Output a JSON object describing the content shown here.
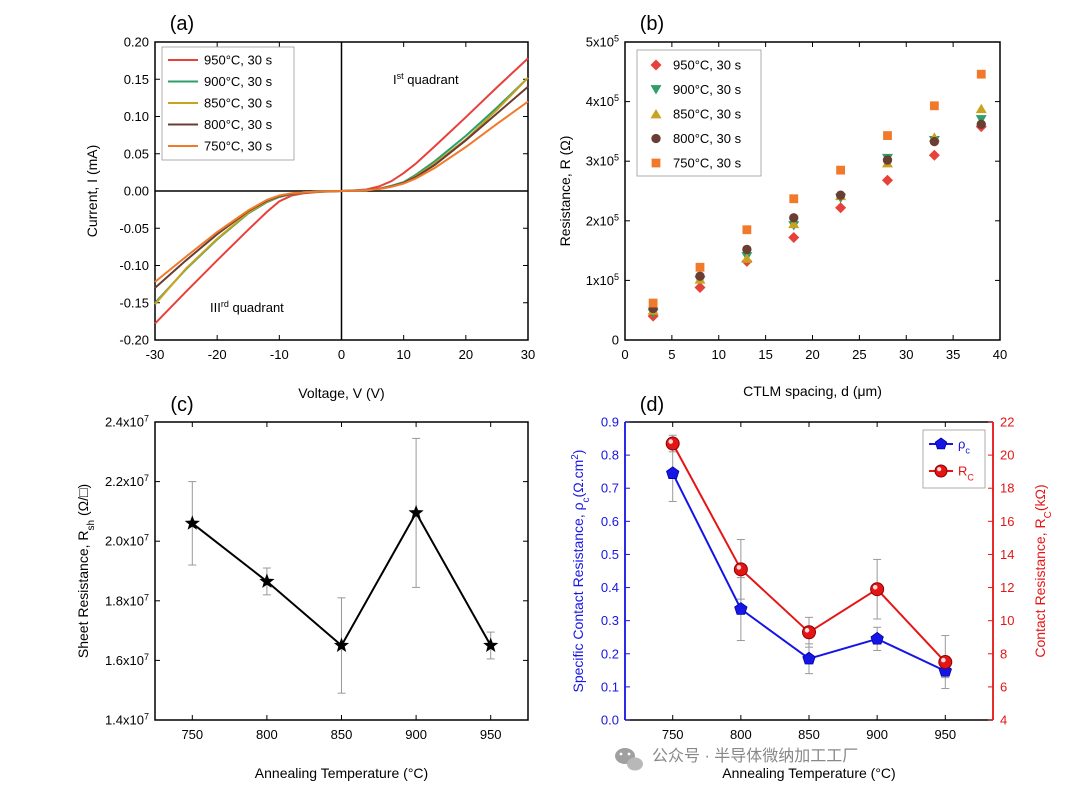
{
  "chart_data": [
    {
      "panel": "(a)",
      "type": "line",
      "xlabel": "Voltage, V (V)",
      "ylabel": "Current, I (mA)",
      "xlim": [
        -30,
        30
      ],
      "ylim": [
        -0.2,
        0.2
      ],
      "xticks": [
        -30,
        -20,
        -10,
        0,
        10,
        20,
        30
      ],
      "yticks": [
        -0.2,
        -0.15,
        -0.1,
        -0.05,
        0.0,
        0.05,
        0.1,
        0.15,
        0.2
      ],
      "ytick_labels": [
        "-0.20",
        "-0.15",
        "-0.10",
        "-0.05",
        "0.00",
        "0.05",
        "0.10",
        "0.15",
        "0.20"
      ],
      "legend_position": "top-left",
      "annotations": [
        {
          "base": "I",
          "sup": "st",
          "rest": " quadrant"
        },
        {
          "base": "III",
          "sup": "rd",
          "rest": " quadrant"
        }
      ],
      "x": [
        -30,
        -25,
        -20,
        -15,
        -12,
        -10,
        -8,
        -6,
        -4,
        -2,
        0,
        2,
        4,
        6,
        8,
        10,
        12,
        15,
        20,
        25,
        30
      ],
      "series": [
        {
          "name": "950°C, 30 s",
          "color": "#e8403a",
          "values": [
            -0.178,
            -0.135,
            -0.093,
            -0.052,
            -0.028,
            -0.014,
            -0.006,
            -0.003,
            -0.0015,
            -0.0007,
            0,
            0.0008,
            0.002,
            0.006,
            0.013,
            0.024,
            0.037,
            0.06,
            0.099,
            0.139,
            0.178
          ]
        },
        {
          "name": "900°C, 30 s",
          "color": "#2e9e6a",
          "values": [
            -0.15,
            -0.105,
            -0.065,
            -0.03,
            -0.015,
            -0.008,
            -0.004,
            -0.002,
            -0.001,
            -0.0005,
            0,
            0.0005,
            0.001,
            0.003,
            0.007,
            0.012,
            0.022,
            0.04,
            0.074,
            0.112,
            0.152
          ]
        },
        {
          "name": "850°C, 30 s",
          "color": "#c9a21e",
          "values": [
            -0.152,
            -0.104,
            -0.064,
            -0.029,
            -0.014,
            -0.007,
            -0.0035,
            -0.0018,
            -0.001,
            -0.0005,
            0,
            0.0005,
            0.001,
            0.003,
            0.006,
            0.011,
            0.02,
            0.037,
            0.069,
            0.109,
            0.152
          ]
        },
        {
          "name": "800°C, 30 s",
          "color": "#6b3e34",
          "values": [
            -0.13,
            -0.093,
            -0.058,
            -0.027,
            -0.013,
            -0.007,
            -0.0035,
            -0.0018,
            -0.001,
            -0.0005,
            0,
            0.0005,
            0.001,
            0.0028,
            0.006,
            0.011,
            0.019,
            0.035,
            0.068,
            0.104,
            0.14
          ]
        },
        {
          "name": "750°C, 30 s",
          "color": "#f07a2a",
          "values": [
            -0.122,
            -0.088,
            -0.055,
            -0.026,
            -0.012,
            -0.006,
            -0.003,
            -0.0016,
            -0.0009,
            -0.0004,
            0,
            0.0004,
            0.0009,
            0.0025,
            0.0055,
            0.01,
            0.017,
            0.031,
            0.059,
            0.09,
            0.12
          ]
        }
      ]
    },
    {
      "panel": "(b)",
      "type": "scatter",
      "xlabel": "CTLM spacing, d (μm)",
      "ylabel": "Resistance, R (Ω)",
      "xlim": [
        0,
        40
      ],
      "ylim": [
        0,
        500000
      ],
      "xticks": [
        0,
        5,
        10,
        15,
        20,
        25,
        30,
        35,
        40
      ],
      "yticks": [
        0,
        100000,
        200000,
        300000,
        400000,
        500000
      ],
      "ytick_labels": [
        {
          "base": "0",
          "exp": ""
        },
        {
          "base": "1x10",
          "exp": "5"
        },
        {
          "base": "2x10",
          "exp": "5"
        },
        {
          "base": "3x10",
          "exp": "5"
        },
        {
          "base": "4x10",
          "exp": "5"
        },
        {
          "base": "5x10",
          "exp": "5"
        }
      ],
      "legend_position": "top-left",
      "x": [
        3,
        8,
        13,
        18,
        23,
        28,
        33,
        38
      ],
      "series": [
        {
          "name": "950°C, 30 s",
          "color": "#e8403a",
          "marker": "diamond",
          "values": [
            40000,
            88000,
            132000,
            172000,
            222000,
            268000,
            310000,
            358000
          ]
        },
        {
          "name": "900°C, 30 s",
          "color": "#2e9e6a",
          "marker": "triangle-down",
          "values": [
            45000,
            100000,
            140000,
            192000,
            238000,
            305000,
            335000,
            370000
          ]
        },
        {
          "name": "850°C, 30 s",
          "color": "#c9a21e",
          "marker": "triangle-up",
          "values": [
            50000,
            102000,
            137000,
            195000,
            242000,
            297000,
            340000,
            388000
          ]
        },
        {
          "name": "800°C, 30 s",
          "color": "#6b3e34",
          "marker": "circle",
          "values": [
            53000,
            107000,
            152000,
            205000,
            243000,
            302000,
            333000,
            362000
          ]
        },
        {
          "name": "750°C, 30 s",
          "color": "#f07a2a",
          "marker": "square",
          "values": [
            62000,
            122000,
            185000,
            237000,
            285000,
            343000,
            393000,
            446000
          ]
        }
      ]
    },
    {
      "panel": "(c)",
      "type": "line",
      "xlabel": "Annealing Temperature (°C)",
      "ylabel_parts": {
        "pre": "Sheet Resistance, R",
        "sub": "sh",
        "post": " (Ω/□)"
      },
      "xlim": [
        725,
        975
      ],
      "ylim": [
        14000000,
        24000000
      ],
      "xticks": [
        750,
        800,
        850,
        900,
        950
      ],
      "yticks": [
        14000000,
        16000000,
        18000000,
        20000000,
        22000000,
        24000000
      ],
      "ytick_labels": [
        {
          "base": "1.4x10",
          "exp": "7"
        },
        {
          "base": "1.6x10",
          "exp": "7"
        },
        {
          "base": "1.8x10",
          "exp": "7"
        },
        {
          "base": "2.0x10",
          "exp": "7"
        },
        {
          "base": "2.2x10",
          "exp": "7"
        },
        {
          "base": "2.4x10",
          "exp": "7"
        }
      ],
      "x": [
        750,
        800,
        850,
        900,
        950
      ],
      "series": [
        {
          "name": "Rsh",
          "color": "#000000",
          "marker": "star",
          "values": [
            20600000,
            18650000,
            16500000,
            20950000,
            16500000
          ],
          "errors": [
            1400000,
            450000,
            1600000,
            2500000,
            450000
          ]
        }
      ]
    },
    {
      "panel": "(d)",
      "type": "line",
      "xlabel": "Annealing Temperature (°C)",
      "ylabel_left_parts": {
        "pre": "Specific Contact Resistance, ρ",
        "sub": "c",
        "post": "(Ω.cm",
        "sup": "2",
        "end": ")"
      },
      "ylabel_right_parts": {
        "pre": "Contact Resistance, R",
        "sub": "C",
        "post": "(kΩ)"
      },
      "xlim": [
        715,
        985
      ],
      "ylim_left": [
        0.0,
        0.9
      ],
      "ylim_right": [
        4,
        22
      ],
      "xticks": [
        750,
        800,
        850,
        900,
        950
      ],
      "yticks_left": [
        0.0,
        0.1,
        0.2,
        0.3,
        0.4,
        0.5,
        0.6,
        0.7,
        0.8,
        0.9
      ],
      "yticks_left_labels": [
        "0.0",
        "0.1",
        "0.2",
        "0.3",
        "0.4",
        "0.5",
        "0.6",
        "0.7",
        "0.8",
        "0.9"
      ],
      "yticks_right": [
        4,
        6,
        8,
        10,
        12,
        14,
        16,
        18,
        20,
        22
      ],
      "legend_position": "top-right",
      "left_color": "#1515e6",
      "right_color": "#e61515",
      "x": [
        750,
        800,
        850,
        900,
        950
      ],
      "series": [
        {
          "name": "ρ",
          "sub": "c",
          "axis": "left",
          "color": "#1515e6",
          "marker": "pentagon",
          "values": [
            0.745,
            0.335,
            0.185,
            0.245,
            0.148
          ],
          "errors": [
            0.085,
            0.095,
            0.045,
            0.035,
            0.02
          ]
        },
        {
          "name": "R",
          "sub": "C",
          "axis": "right",
          "color": "#e61515",
          "marker": "circle",
          "values": [
            20.7,
            13.1,
            9.3,
            11.9,
            7.5
          ],
          "errors": [
            0.5,
            1.8,
            0.9,
            1.8,
            1.6
          ]
        }
      ]
    }
  ],
  "watermark": {
    "icon": "wechat-icon",
    "text": "公众号 · 半导体微纳加工工厂"
  }
}
